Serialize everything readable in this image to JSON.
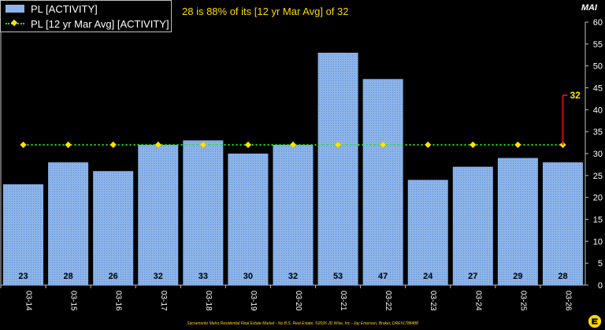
{
  "header": {
    "summary": "28 is 88% of its [12 yr Mar Avg] of 32",
    "unit_label": "MAI"
  },
  "legend": {
    "bar_label": "PL [ACTIVITY]",
    "avg_label": "PL [12 yr Mar Avg] [ACTIVITY]"
  },
  "footer_text": "Sacramento Metro Residential Real Estate Market - No B.S. Real Estate, ©2026 JD Wise, Inc - Jay Emerson, Broker, DRE#1788488",
  "colors": {
    "bar": "#8db4e8",
    "avg_line": "#22e822",
    "avg_marker": "#ffe500",
    "callout": "#d01010",
    "callout_text": "#ffe500"
  },
  "chart_data": {
    "type": "bar",
    "categories": [
      "03-14",
      "03-15",
      "03-16",
      "03-17",
      "03-18",
      "03-19",
      "03-20",
      "03-21",
      "03-22",
      "03-23",
      "03-24",
      "03-25",
      "03-26"
    ],
    "series": [
      {
        "name": "PL [ACTIVITY]",
        "type": "bar",
        "values": [
          23,
          28,
          26,
          32,
          33,
          30,
          32,
          53,
          47,
          24,
          27,
          29,
          28
        ]
      },
      {
        "name": "PL [12 yr Mar Avg] [ACTIVITY]",
        "type": "line",
        "values": [
          32,
          32,
          32,
          32,
          32,
          32,
          32,
          32,
          32,
          32,
          32,
          32,
          32
        ]
      }
    ],
    "ylim": [
      0,
      60
    ],
    "yticks": [
      0,
      5,
      10,
      15,
      20,
      25,
      30,
      35,
      40,
      45,
      50,
      55,
      60
    ],
    "y_axis_position": "right",
    "ylabel": "MAI",
    "callout": {
      "category": "03-26",
      "value": 32,
      "label": "32"
    },
    "grid": false,
    "legend_position": "top-left"
  }
}
